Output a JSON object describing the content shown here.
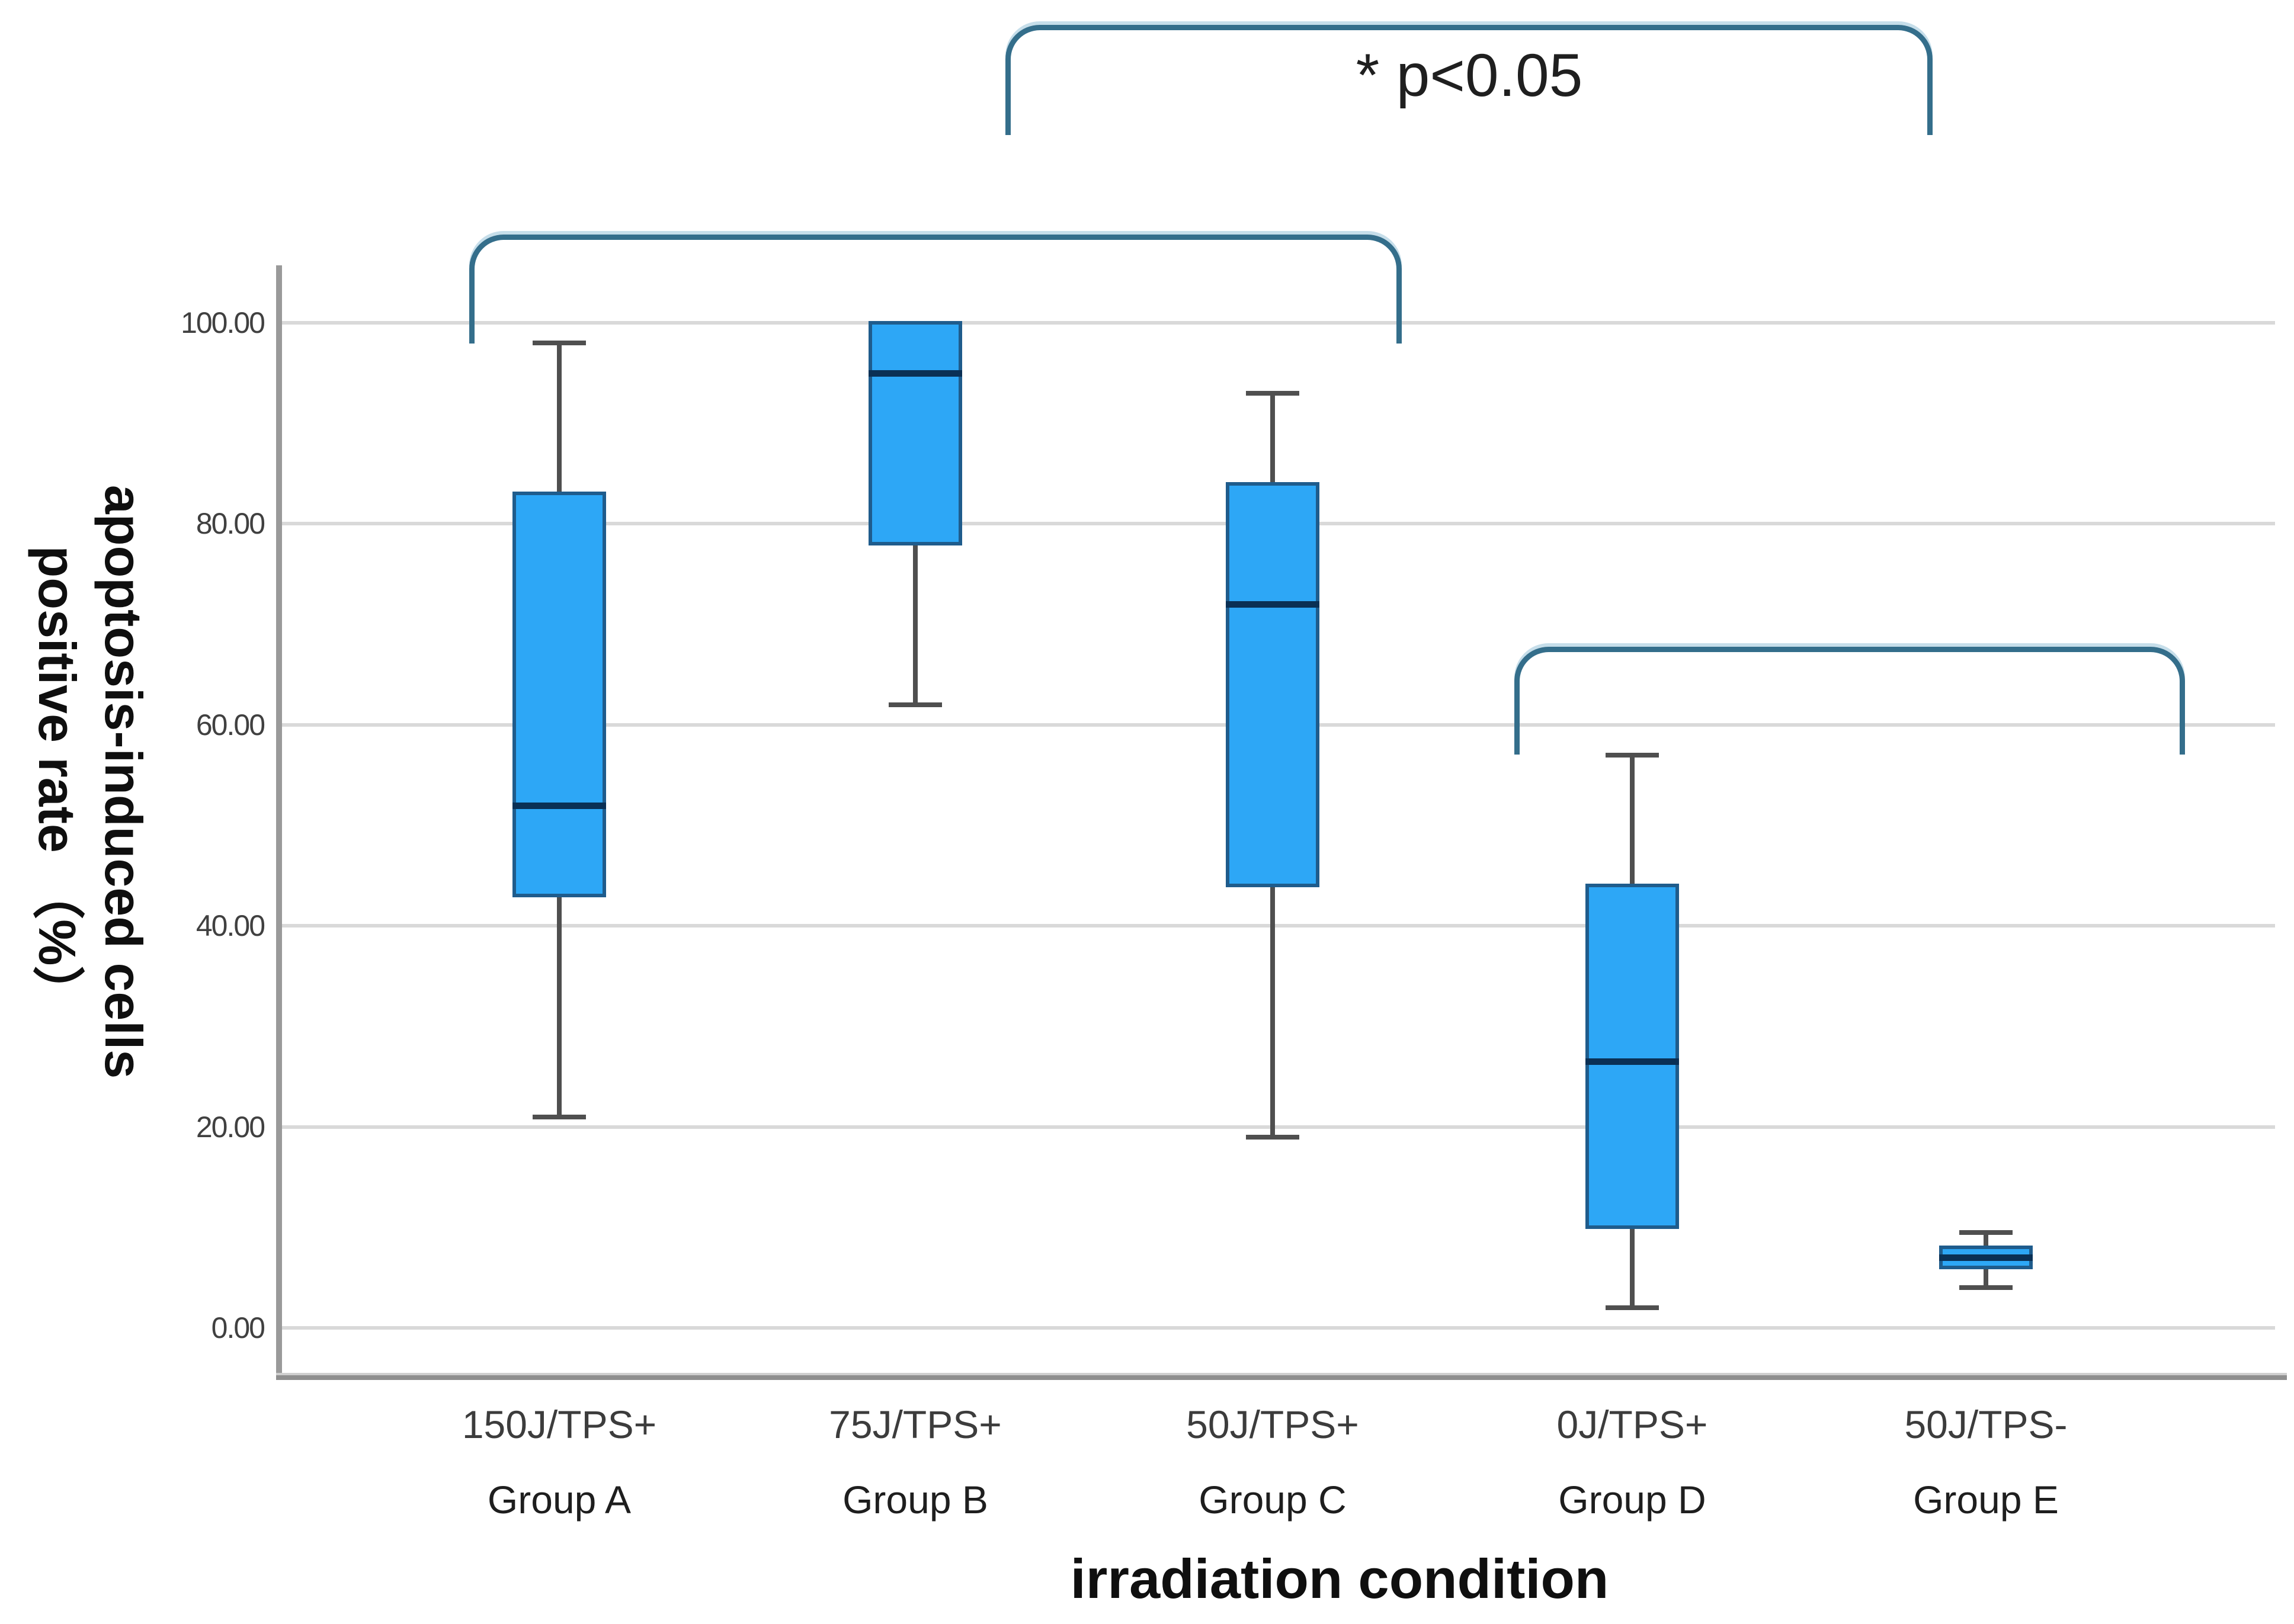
{
  "chart_data": {
    "type": "boxplot",
    "title": "",
    "xlabel": "irradiation condition",
    "ylabel": "apoptosis-induced cells positive rate (%)",
    "ylabel_lines": [
      "apoptosis-induced cells",
      "positive rate （%）"
    ],
    "ylim": [
      0,
      100
    ],
    "yticks": [
      0,
      20,
      40,
      60,
      80,
      100
    ],
    "ytick_labels": [
      "0.00",
      "20.00",
      "40.00",
      "60.00",
      "80.00",
      "100.00"
    ],
    "grid": "horizontal-only",
    "legend": "none",
    "annotation": "* p<0.05",
    "groups": [
      {
        "id": "a",
        "condition": "150J/TPS+",
        "group": "Group A",
        "min": 21,
        "q1": 43,
        "median": 52,
        "q3": 83,
        "max": 98
      },
      {
        "id": "b",
        "condition": "75J/TPS+",
        "group": "Group B",
        "min": 62,
        "q1": 78,
        "median": 95,
        "q3": 100,
        "max": 100
      },
      {
        "id": "c",
        "condition": "50J/TPS+",
        "group": "Group C",
        "min": 19,
        "q1": 44,
        "median": 72,
        "q3": 84,
        "max": 93
      },
      {
        "id": "d",
        "condition": "0J/TPS+",
        "group": "Group D",
        "min": 2,
        "q1": 10,
        "median": 26.5,
        "q3": 44,
        "max": 57
      },
      {
        "id": "e",
        "condition": "50J/TPS-",
        "group": "Group E",
        "min": 4,
        "q1": 6,
        "median": 7,
        "q3": 8,
        "max": 9.5
      }
    ],
    "significance_brackets": [
      {
        "id": "top",
        "spans": "Group B to Group E",
        "x1": 1697,
        "x2": 3262,
        "y": 42,
        "drop": 186
      },
      {
        "id": "a-c",
        "spans": "Group A to Group C",
        "x1": 792,
        "x2": 2366,
        "y": 396,
        "drop": 184
      },
      {
        "id": "d-e",
        "spans": "Group D to Group E",
        "x1": 2556,
        "x2": 3688,
        "y": 1092,
        "drop": 182
      }
    ],
    "colors": {
      "box_fill": "#2da7f6",
      "box_border": "#1f5c8c",
      "median": "#0a3055",
      "whisker": "#4f4f4f",
      "bracket": "#346e8b",
      "gridline": "#d9d9d9",
      "axis": "#9a9a9a",
      "tick_text": "#404040",
      "condition_text": "#3c3c3c",
      "group_text": "#1e1e1e",
      "title_text": "#0f0f0f",
      "annotation_text": "#1f1f1f"
    }
  }
}
